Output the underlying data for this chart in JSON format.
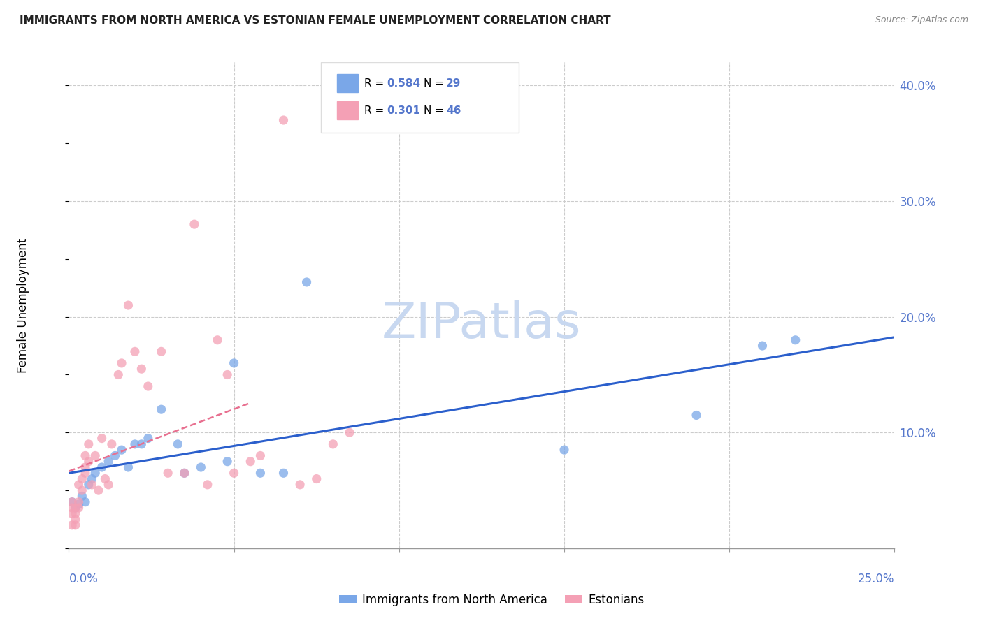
{
  "title": "IMMIGRANTS FROM NORTH AMERICA VS ESTONIAN FEMALE UNEMPLOYMENT CORRELATION CHART",
  "source": "Source: ZipAtlas.com",
  "ylabel": "Female Unemployment",
  "right_ytick_vals": [
    0.0,
    0.1,
    0.2,
    0.3,
    0.4
  ],
  "right_yticklabels": [
    "",
    "10.0%",
    "20.0%",
    "30.0%",
    "40.0%"
  ],
  "xlim": [
    0.0,
    0.25
  ],
  "ylim": [
    0.0,
    0.42
  ],
  "watermark": "ZIPatlas",
  "legend_r1": "0.584",
  "legend_n1": "29",
  "legend_r2": "0.301",
  "legend_n2": "46",
  "blue_color": "#7aa7e8",
  "pink_color": "#f4a0b5",
  "blue_line_color": "#2b5fcc",
  "pink_line_color": "#e87090",
  "grid_color": "#cccccc",
  "background_color": "#ffffff",
  "title_fontsize": 11,
  "source_fontsize": 9,
  "watermark_color": "#c8d8f0",
  "axis_label_color": "#5577cc",
  "blue_scatter_x": [
    0.001,
    0.002,
    0.003,
    0.004,
    0.005,
    0.006,
    0.007,
    0.008,
    0.01,
    0.012,
    0.014,
    0.016,
    0.018,
    0.02,
    0.022,
    0.024,
    0.028,
    0.033,
    0.035,
    0.04,
    0.048,
    0.05,
    0.058,
    0.065,
    0.072,
    0.15,
    0.19,
    0.21,
    0.22
  ],
  "blue_scatter_y": [
    0.04,
    0.035,
    0.038,
    0.045,
    0.04,
    0.055,
    0.06,
    0.065,
    0.07,
    0.075,
    0.08,
    0.085,
    0.07,
    0.09,
    0.09,
    0.095,
    0.12,
    0.09,
    0.065,
    0.07,
    0.075,
    0.16,
    0.065,
    0.065,
    0.23,
    0.085,
    0.115,
    0.175,
    0.18
  ],
  "pink_scatter_x": [
    0.001,
    0.001,
    0.001,
    0.001,
    0.002,
    0.002,
    0.002,
    0.002,
    0.003,
    0.003,
    0.003,
    0.004,
    0.004,
    0.005,
    0.005,
    0.005,
    0.006,
    0.006,
    0.007,
    0.008,
    0.009,
    0.01,
    0.011,
    0.012,
    0.013,
    0.015,
    0.016,
    0.018,
    0.02,
    0.022,
    0.024,
    0.028,
    0.03,
    0.035,
    0.038,
    0.042,
    0.045,
    0.048,
    0.05,
    0.055,
    0.058,
    0.065,
    0.07,
    0.075,
    0.08,
    0.085
  ],
  "pink_scatter_y": [
    0.04,
    0.035,
    0.03,
    0.02,
    0.035,
    0.03,
    0.025,
    0.02,
    0.055,
    0.04,
    0.035,
    0.06,
    0.05,
    0.08,
    0.07,
    0.065,
    0.09,
    0.075,
    0.055,
    0.08,
    0.05,
    0.095,
    0.06,
    0.055,
    0.09,
    0.15,
    0.16,
    0.21,
    0.17,
    0.155,
    0.14,
    0.17,
    0.065,
    0.065,
    0.28,
    0.055,
    0.18,
    0.15,
    0.065,
    0.075,
    0.08,
    0.37,
    0.055,
    0.06,
    0.09,
    0.1
  ]
}
